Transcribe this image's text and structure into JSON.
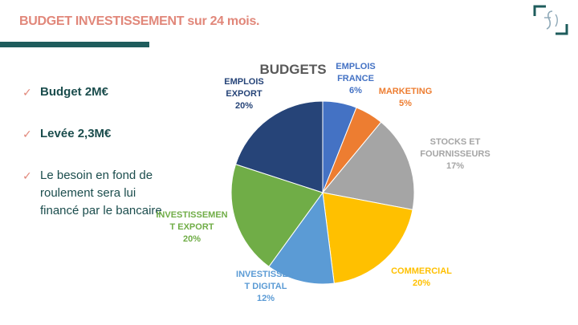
{
  "slide": {
    "title": "BUDGET INVESTISSEMENT sur 24 mois."
  },
  "colors": {
    "title": "#E1877A",
    "accent_bar": "#1E5C5C",
    "bullet_text": "#1B4D4D",
    "check": "#E1877A"
  },
  "bullets": [
    {
      "text": "Budget 2M€",
      "bold": true
    },
    {
      "text": "Levée 2,3M€",
      "bold": true
    },
    {
      "text": "Le besoin en fond de roulement sera lui financé par le bancaire",
      "bold": false
    }
  ],
  "check_symbol": "✓",
  "chart_data": {
    "type": "pie",
    "title": "BUDGETS",
    "slices": [
      {
        "name": "EMPLOIS FRANCE",
        "value": 6,
        "label": "6%",
        "color": "#4472C4"
      },
      {
        "name": "MARKETING",
        "value": 5,
        "label": "5%",
        "color": "#ED7D31"
      },
      {
        "name": "STOCKS ET FOURNISSEURS",
        "value": 17,
        "label": "17%",
        "color": "#A5A5A5"
      },
      {
        "name": "COMMERCIAL",
        "value": 20,
        "label": "20%",
        "color": "#FFC000"
      },
      {
        "name": "INVESTISSEMENT DIGITAL",
        "value": 12,
        "label": "12%",
        "color": "#5B9BD5"
      },
      {
        "name": "INVESTISSEMENT EXPORT",
        "value": 20,
        "label": "20%",
        "color": "#70AD47"
      },
      {
        "name": "EMPLOIS EXPORT",
        "value": 20,
        "label": "20%",
        "color": "#264478"
      }
    ]
  }
}
